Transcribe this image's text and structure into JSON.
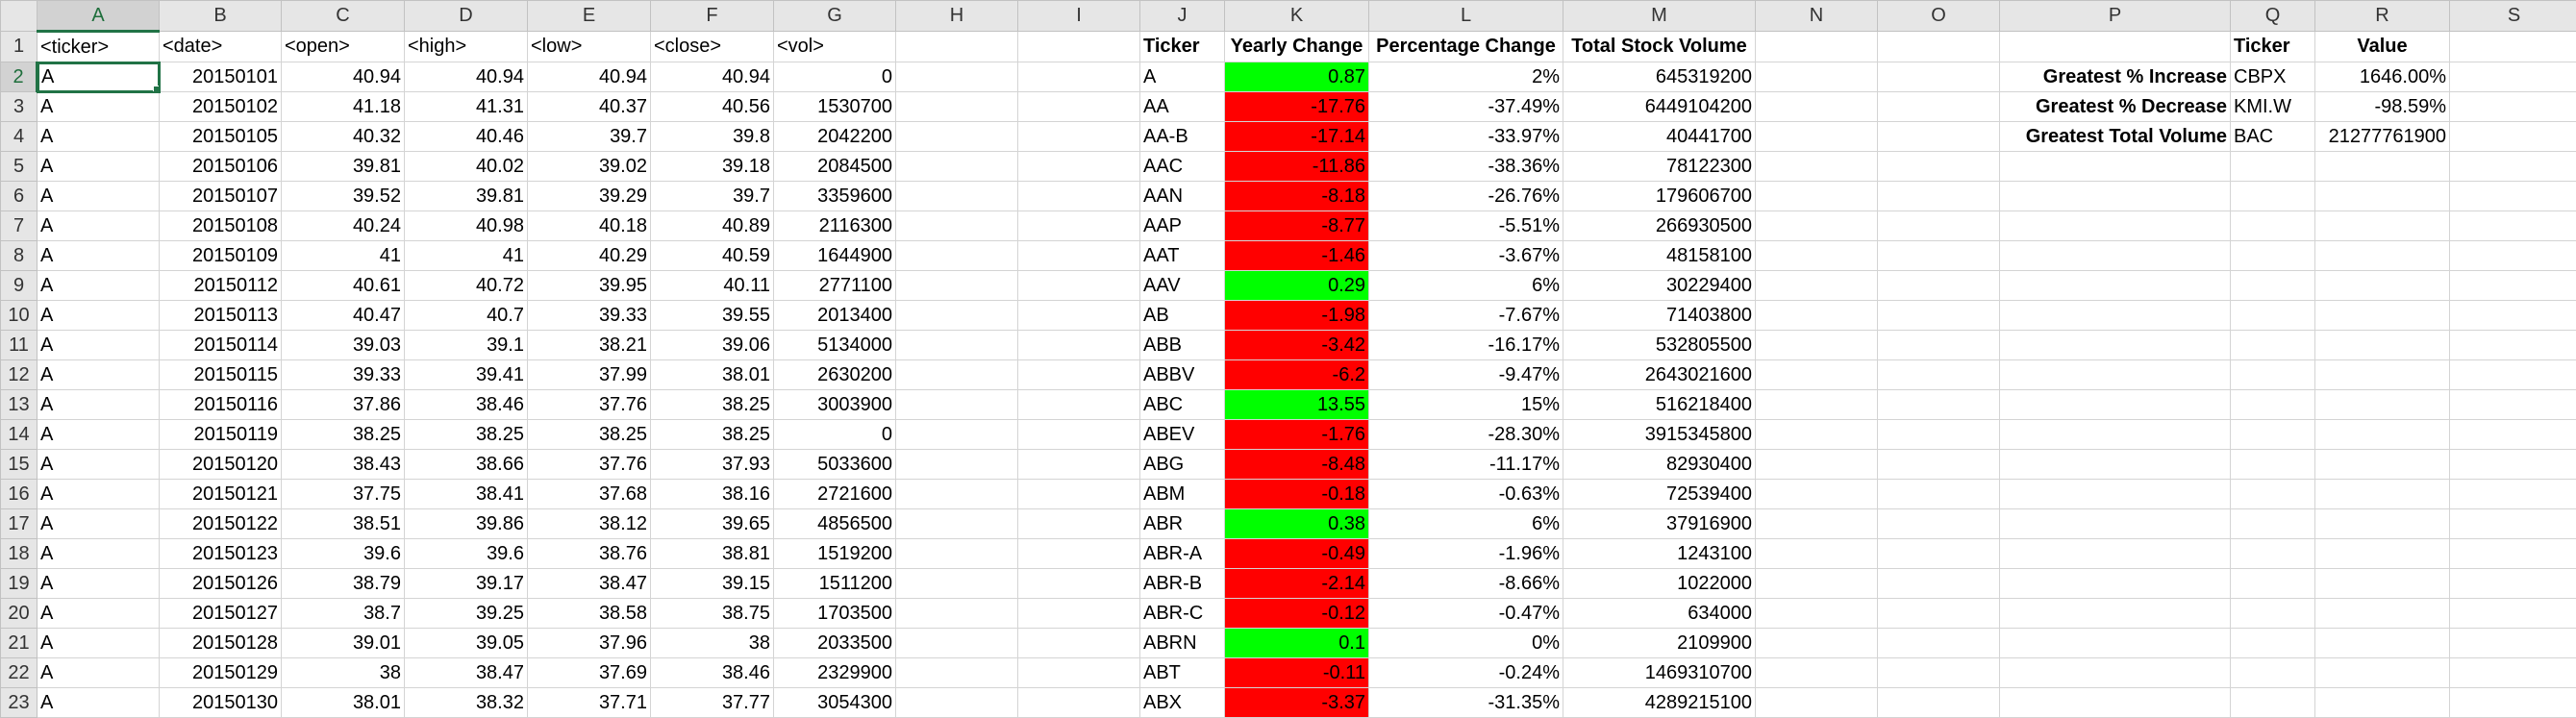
{
  "colors": {
    "positive": "#00ff00",
    "negative": "#ff0000"
  },
  "columns": [
    "A",
    "B",
    "C",
    "D",
    "E",
    "F",
    "G",
    "H",
    "I",
    "J",
    "K",
    "L",
    "M",
    "N",
    "O",
    "P",
    "Q",
    "R",
    "S"
  ],
  "selected_cell": {
    "column": "A",
    "row": "2"
  },
  "raw_headers": [
    "<ticker>",
    "<date>",
    "<open>",
    "<high>",
    "<low>",
    "<close>",
    "<vol>"
  ],
  "summary_headers": [
    "Ticker",
    "Yearly Change",
    "Percentage Change",
    "Total Stock Volume"
  ],
  "stats_headers": [
    "Ticker",
    "Value"
  ],
  "raw_rows": [
    [
      "A",
      "20150101",
      "40.94",
      "40.94",
      "40.94",
      "40.94",
      "0"
    ],
    [
      "A",
      "20150102",
      "41.18",
      "41.31",
      "40.37",
      "40.56",
      "1530700"
    ],
    [
      "A",
      "20150105",
      "40.32",
      "40.46",
      "39.7",
      "39.8",
      "2042200"
    ],
    [
      "A",
      "20150106",
      "39.81",
      "40.02",
      "39.02",
      "39.18",
      "2084500"
    ],
    [
      "A",
      "20150107",
      "39.52",
      "39.81",
      "39.29",
      "39.7",
      "3359600"
    ],
    [
      "A",
      "20150108",
      "40.24",
      "40.98",
      "40.18",
      "40.89",
      "2116300"
    ],
    [
      "A",
      "20150109",
      "41",
      "41",
      "40.29",
      "40.59",
      "1644900"
    ],
    [
      "A",
      "20150112",
      "40.61",
      "40.72",
      "39.95",
      "40.11",
      "2771100"
    ],
    [
      "A",
      "20150113",
      "40.47",
      "40.7",
      "39.33",
      "39.55",
      "2013400"
    ],
    [
      "A",
      "20150114",
      "39.03",
      "39.1",
      "38.21",
      "39.06",
      "5134000"
    ],
    [
      "A",
      "20150115",
      "39.33",
      "39.41",
      "37.99",
      "38.01",
      "2630200"
    ],
    [
      "A",
      "20150116",
      "37.86",
      "38.46",
      "37.76",
      "38.25",
      "3003900"
    ],
    [
      "A",
      "20150119",
      "38.25",
      "38.25",
      "38.25",
      "38.25",
      "0"
    ],
    [
      "A",
      "20150120",
      "38.43",
      "38.66",
      "37.76",
      "37.93",
      "5033600"
    ],
    [
      "A",
      "20150121",
      "37.75",
      "38.41",
      "37.68",
      "38.16",
      "2721600"
    ],
    [
      "A",
      "20150122",
      "38.51",
      "39.86",
      "38.12",
      "39.65",
      "4856500"
    ],
    [
      "A",
      "20150123",
      "39.6",
      "39.6",
      "38.76",
      "38.81",
      "1519200"
    ],
    [
      "A",
      "20150126",
      "38.79",
      "39.17",
      "38.47",
      "39.15",
      "1511200"
    ],
    [
      "A",
      "20150127",
      "38.7",
      "39.25",
      "38.58",
      "38.75",
      "1703500"
    ],
    [
      "A",
      "20150128",
      "39.01",
      "39.05",
      "37.96",
      "38",
      "2033500"
    ],
    [
      "A",
      "20150129",
      "38",
      "38.47",
      "37.69",
      "38.46",
      "2329900"
    ],
    [
      "A",
      "20150130",
      "38.01",
      "38.32",
      "37.71",
      "37.77",
      "3054300"
    ]
  ],
  "summary_rows": [
    {
      "ticker": "A",
      "change": "0.87",
      "pct": "2%",
      "volume": "645319200",
      "positive": true
    },
    {
      "ticker": "AA",
      "change": "-17.76",
      "pct": "-37.49%",
      "volume": "6449104200",
      "positive": false
    },
    {
      "ticker": "AA-B",
      "change": "-17.14",
      "pct": "-33.97%",
      "volume": "40441700",
      "positive": false
    },
    {
      "ticker": "AAC",
      "change": "-11.86",
      "pct": "-38.36%",
      "volume": "78122300",
      "positive": false
    },
    {
      "ticker": "AAN",
      "change": "-8.18",
      "pct": "-26.76%",
      "volume": "179606700",
      "positive": false
    },
    {
      "ticker": "AAP",
      "change": "-8.77",
      "pct": "-5.51%",
      "volume": "266930500",
      "positive": false
    },
    {
      "ticker": "AAT",
      "change": "-1.46",
      "pct": "-3.67%",
      "volume": "48158100",
      "positive": false
    },
    {
      "ticker": "AAV",
      "change": "0.29",
      "pct": "6%",
      "volume": "30229400",
      "positive": true
    },
    {
      "ticker": "AB",
      "change": "-1.98",
      "pct": "-7.67%",
      "volume": "71403800",
      "positive": false
    },
    {
      "ticker": "ABB",
      "change": "-3.42",
      "pct": "-16.17%",
      "volume": "532805500",
      "positive": false
    },
    {
      "ticker": "ABBV",
      "change": "-6.2",
      "pct": "-9.47%",
      "volume": "2643021600",
      "positive": false
    },
    {
      "ticker": "ABC",
      "change": "13.55",
      "pct": "15%",
      "volume": "516218400",
      "positive": true
    },
    {
      "ticker": "ABEV",
      "change": "-1.76",
      "pct": "-28.30%",
      "volume": "3915345800",
      "positive": false
    },
    {
      "ticker": "ABG",
      "change": "-8.48",
      "pct": "-11.17%",
      "volume": "82930400",
      "positive": false
    },
    {
      "ticker": "ABM",
      "change": "-0.18",
      "pct": "-0.63%",
      "volume": "72539400",
      "positive": false
    },
    {
      "ticker": "ABR",
      "change": "0.38",
      "pct": "6%",
      "volume": "37916900",
      "positive": true
    },
    {
      "ticker": "ABR-A",
      "change": "-0.49",
      "pct": "-1.96%",
      "volume": "1243100",
      "positive": false
    },
    {
      "ticker": "ABR-B",
      "change": "-2.14",
      "pct": "-8.66%",
      "volume": "1022000",
      "positive": false
    },
    {
      "ticker": "ABR-C",
      "change": "-0.12",
      "pct": "-0.47%",
      "volume": "634000",
      "positive": false
    },
    {
      "ticker": "ABRN",
      "change": "0.1",
      "pct": "0%",
      "volume": "2109900",
      "positive": true
    },
    {
      "ticker": "ABT",
      "change": "-0.11",
      "pct": "-0.24%",
      "volume": "1469310700",
      "positive": false
    },
    {
      "ticker": "ABX",
      "change": "-3.37",
      "pct": "-31.35%",
      "volume": "4289215100",
      "positive": false
    }
  ],
  "stats_rows": [
    {
      "label": "Greatest % Increase",
      "ticker": "CBPX",
      "value": "1646.00%"
    },
    {
      "label": "Greatest % Decrease",
      "ticker": "KMI.W",
      "value": "-98.59%"
    },
    {
      "label": "Greatest Total Volume",
      "ticker": "BAC",
      "value": "21277761900"
    }
  ]
}
